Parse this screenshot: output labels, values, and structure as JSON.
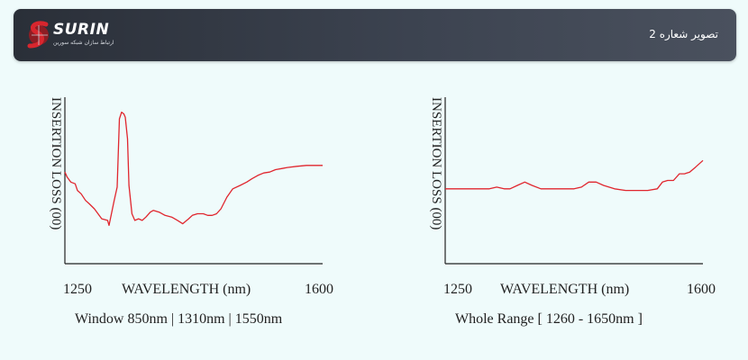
{
  "header": {
    "logo_text": "SURIN",
    "logo_subtitle": "ارتباط سازان شبکه سورین",
    "title": "تصویر شعاره 2",
    "logo_colors": {
      "mark": "#d8262e",
      "text": "#ffffff"
    }
  },
  "chart_data": [
    {
      "type": "line",
      "title": "",
      "xlabel": "WAVELENGTH (nm)",
      "ylabel": "INSERTION LOSS (00)",
      "x_ticks": [
        "1250",
        "1600"
      ],
      "xlim": [
        1250,
        1600
      ],
      "caption": "Window  850nm | 1310nm | 1550nm",
      "grid": false,
      "series_color": "#e0262e",
      "series": [
        {
          "x": [
            1250,
            1253,
            1258,
            1264,
            1267,
            1272,
            1278,
            1283,
            1290,
            1300,
            1308,
            1310,
            1317,
            1321,
            1324,
            1327,
            1330,
            1332,
            1335,
            1337,
            1341,
            1345,
            1350,
            1355,
            1360,
            1366,
            1370,
            1378,
            1386,
            1395,
            1399,
            1403,
            1410,
            1418,
            1423,
            1430,
            1438,
            1444,
            1450,
            1456,
            1462,
            1470,
            1478,
            1488,
            1497,
            1504,
            1512,
            1520,
            1528,
            1536,
            1545,
            1552,
            1565,
            1578,
            1590,
            1600
          ],
          "y": [
            5.5,
            5.2,
            4.9,
            4.8,
            4.4,
            4.2,
            3.8,
            3.6,
            3.3,
            2.7,
            2.6,
            2.3,
            3.8,
            4.6,
            8.7,
            9.1,
            9.0,
            8.8,
            7.5,
            4.7,
            3.0,
            2.6,
            2.7,
            2.6,
            2.8,
            3.1,
            3.2,
            3.1,
            2.9,
            2.8,
            2.7,
            2.6,
            2.4,
            2.7,
            2.9,
            3.0,
            3.0,
            2.9,
            2.9,
            3.0,
            3.3,
            4.0,
            4.5,
            4.7,
            4.9,
            5.1,
            5.3,
            5.45,
            5.5,
            5.65,
            5.72,
            5.78,
            5.85,
            5.9,
            5.9,
            5.9
          ]
        }
      ]
    },
    {
      "type": "line",
      "title": "",
      "xlabel": "WAVELENGTH (nm)",
      "ylabel": "INSERTION LOSS (00)",
      "x_ticks": [
        "1250",
        "1600"
      ],
      "xlim": [
        1250,
        1600
      ],
      "caption": "Whole Range [ 1260 - 1650nm ]",
      "grid": false,
      "series_color": "#e0262e",
      "series": [
        {
          "x": [
            1250,
            1265,
            1280,
            1295,
            1310,
            1320,
            1330,
            1338,
            1348,
            1358,
            1368,
            1380,
            1395,
            1410,
            1425,
            1435,
            1445,
            1455,
            1465,
            1480,
            1495,
            1510,
            1525,
            1538,
            1545,
            1552,
            1560,
            1568,
            1575,
            1582,
            1590,
            1600
          ],
          "y": [
            4.5,
            4.5,
            4.5,
            4.5,
            4.5,
            4.6,
            4.5,
            4.5,
            4.7,
            4.9,
            4.7,
            4.5,
            4.5,
            4.5,
            4.5,
            4.6,
            4.9,
            4.9,
            4.7,
            4.5,
            4.4,
            4.4,
            4.4,
            4.5,
            4.9,
            5.0,
            5.0,
            5.4,
            5.4,
            5.5,
            5.8,
            6.2
          ]
        }
      ]
    }
  ]
}
